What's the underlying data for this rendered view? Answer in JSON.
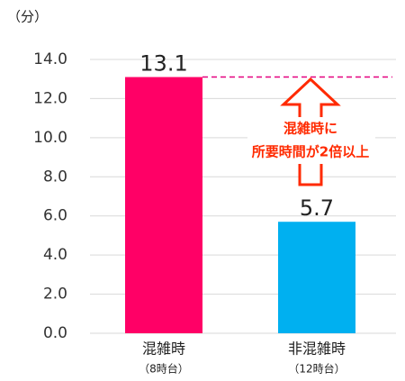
{
  "chart_data": {
    "type": "bar",
    "y_label": "（分）",
    "categories": [
      "混雑時",
      "非混雑時"
    ],
    "sublabels": [
      "（8時台）",
      "（12時台）"
    ],
    "values": [
      13.1,
      5.7
    ],
    "colors": [
      "#ff0066",
      "#00b0f0"
    ],
    "ylim": [
      0,
      14
    ],
    "yticks": [
      {
        "value": 0,
        "label": "0.0"
      },
      {
        "value": 2,
        "label": "2.0"
      },
      {
        "value": 4,
        "label": "4.0"
      },
      {
        "value": 6,
        "label": "6.0"
      },
      {
        "value": 8,
        "label": "8.0"
      },
      {
        "value": 10,
        "label": "10.0"
      },
      {
        "value": 12,
        "label": "12.0"
      },
      {
        "value": 14,
        "label": "14.0"
      }
    ],
    "grid": true,
    "annotation": [
      "混雑時に",
      "所要時間が2倍以上"
    ]
  }
}
